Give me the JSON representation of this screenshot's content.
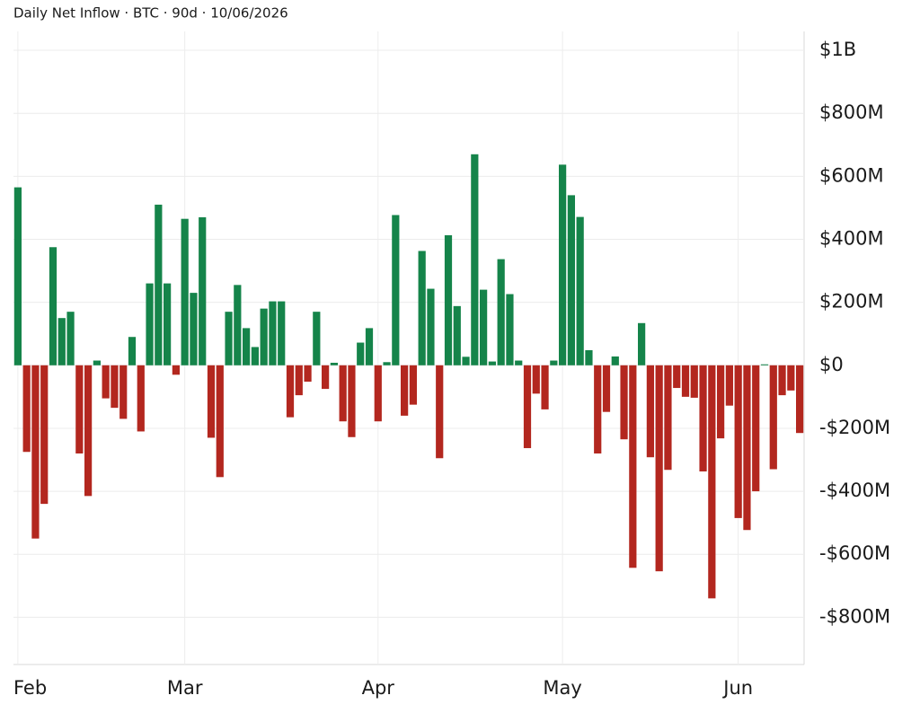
{
  "chart_data": {
    "type": "bar",
    "title": "Daily Net Inflow · BTC · 90d · 10/06/2026",
    "categories": [
      "Feb",
      null,
      null,
      null,
      null,
      null,
      null,
      null,
      null,
      null,
      null,
      null,
      null,
      null,
      null,
      null,
      null,
      null,
      null,
      "Mar",
      null,
      null,
      null,
      null,
      null,
      null,
      null,
      null,
      null,
      null,
      null,
      null,
      null,
      null,
      null,
      null,
      null,
      null,
      null,
      null,
      null,
      "Apr",
      null,
      null,
      null,
      null,
      null,
      null,
      null,
      null,
      null,
      null,
      null,
      null,
      null,
      null,
      null,
      null,
      null,
      null,
      null,
      null,
      "May",
      null,
      null,
      null,
      null,
      null,
      null,
      null,
      null,
      null,
      null,
      null,
      null,
      null,
      null,
      null,
      null,
      null,
      null,
      null,
      "Jun",
      null,
      null,
      null,
      null,
      null,
      null,
      null
    ],
    "values": [
      565000000,
      -275000000,
      -550000000,
      -440000000,
      375000000,
      150000000,
      170000000,
      -280000000,
      -415000000,
      15000000,
      -105000000,
      -135000000,
      -170000000,
      90000000,
      -210000000,
      260000000,
      510000000,
      260000000,
      -30000000,
      465000000,
      230000000,
      470000000,
      -230000000,
      -355000000,
      170000000,
      255000000,
      118000000,
      58000000,
      180000000,
      203000000,
      203000000,
      -165000000,
      -95000000,
      -52000000,
      170000000,
      -75000000,
      8000000,
      -178000000,
      -228000000,
      72000000,
      118000000,
      -178000000,
      10000000,
      477000000,
      -160000000,
      -125000000,
      363000000,
      243000000,
      -295000000,
      413000000,
      188000000,
      27000000,
      670000000,
      240000000,
      12000000,
      337000000,
      226000000,
      15000000,
      -263000000,
      -90000000,
      -140000000,
      15000000,
      637000000,
      540000000,
      471000000,
      48000000,
      -280000000,
      -148000000,
      28000000,
      -235000000,
      -643000000,
      134000000,
      -292000000,
      -654000000,
      -332000000,
      -72000000,
      -100000000,
      -103000000,
      -337000000,
      -740000000,
      -232000000,
      -128000000,
      -485000000,
      -523000000,
      -400000000,
      3000000,
      -330000000,
      -95000000,
      -80000000,
      -215000000
    ],
    "positive_color": "#15844a",
    "negative_color": "#b3271f",
    "ylim": [
      -950000000,
      1060000000
    ],
    "yticks": [
      {
        "value": 1000000000,
        "label": "$1B"
      },
      {
        "value": 800000000,
        "label": "$800M"
      },
      {
        "value": 600000000,
        "label": "$600M"
      },
      {
        "value": 400000000,
        "label": "$400M"
      },
      {
        "value": 200000000,
        "label": "$200M"
      },
      {
        "value": 0,
        "label": "$0"
      },
      {
        "value": -200000000,
        "label": "-$200M"
      },
      {
        "value": -400000000,
        "label": "-$400M"
      },
      {
        "value": -600000000,
        "label": "-$600M"
      },
      {
        "value": -800000000,
        "label": "-$800M"
      }
    ],
    "grid": true
  }
}
